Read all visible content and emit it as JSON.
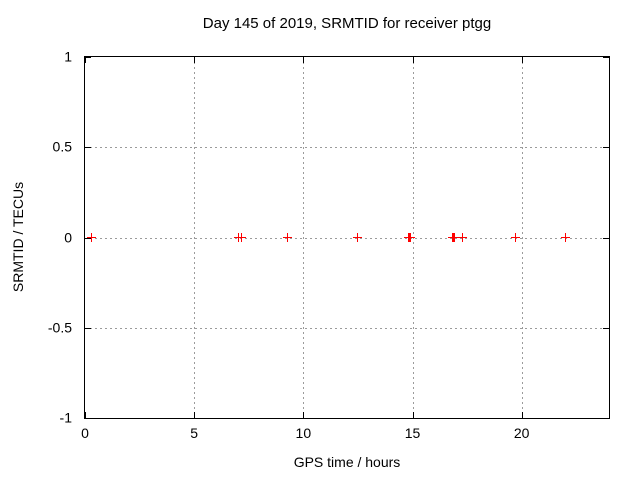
{
  "chart_data": {
    "type": "scatter",
    "title": "Day 145 of 2019, SRMTID for receiver ptgg",
    "xlabel": "GPS time / hours",
    "ylabel": "SRMTID / TECUs",
    "xlim": [
      0,
      24
    ],
    "ylim": [
      -1,
      1
    ],
    "xticks": [
      0,
      5,
      10,
      15,
      20
    ],
    "yticks": [
      1,
      0.5,
      0,
      -0.5,
      -1
    ],
    "grid": true,
    "legend": false,
    "marker": "plus",
    "marker_color": "#ff0000",
    "series": [
      {
        "name": "SRMTID",
        "x": [
          0.3,
          7.05,
          7.2,
          9.3,
          12.5,
          14.85,
          14.9,
          14.95,
          16.85,
          16.9,
          16.95,
          17.3,
          19.75,
          22.05
        ],
        "y": [
          0,
          0,
          0,
          0,
          0,
          0,
          0,
          0,
          0,
          0,
          0,
          0,
          0,
          0
        ]
      }
    ]
  },
  "colors": {
    "marker": "#ff0000",
    "grid": "#9b9b9b",
    "axis": "#000000",
    "background": "#ffffff"
  }
}
